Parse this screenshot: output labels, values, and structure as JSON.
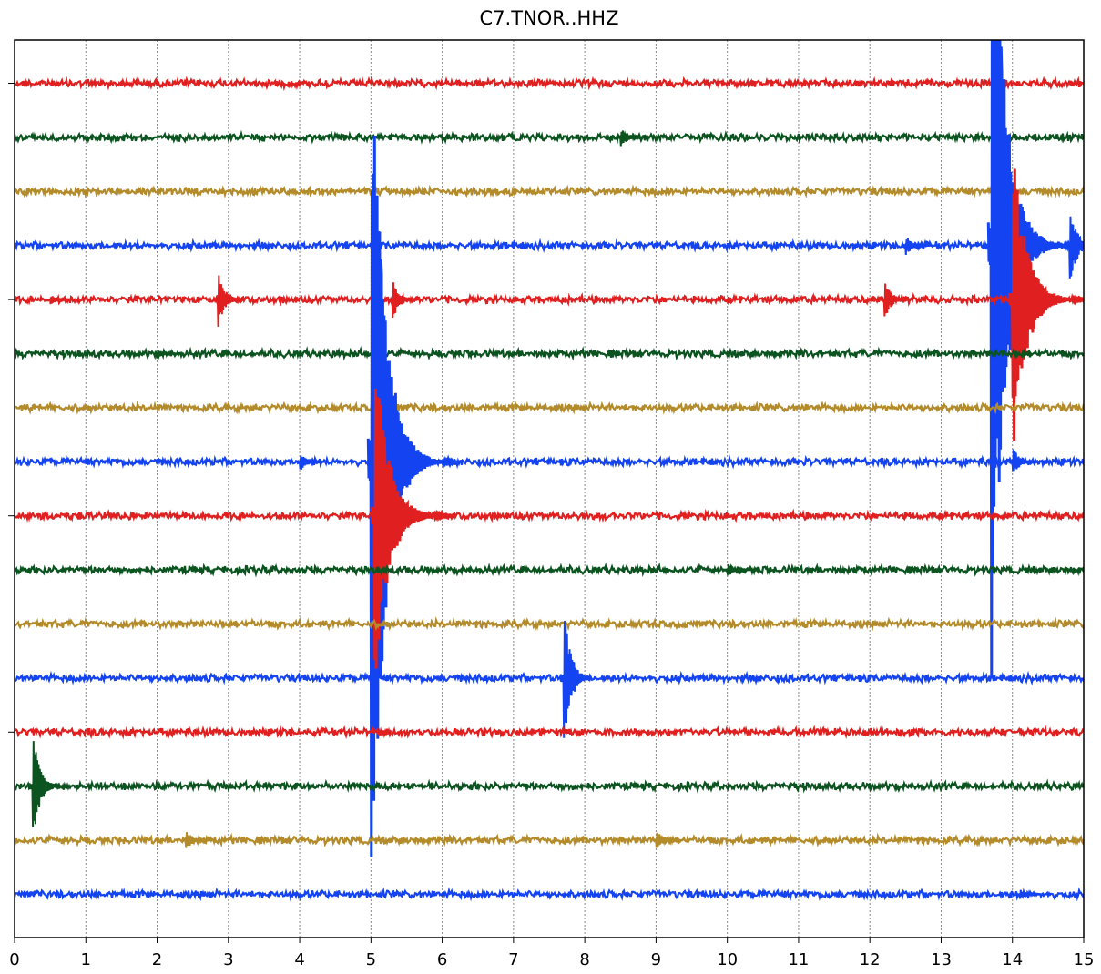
{
  "chart_data": {
    "type": "helicorder",
    "title": "C7.TNOR..HHZ",
    "xlim": [
      0,
      15
    ],
    "xticks": [
      0,
      1,
      2,
      3,
      4,
      5,
      6,
      7,
      8,
      9,
      10,
      11,
      12,
      13,
      14,
      15
    ],
    "ylim": [
      -0.8,
      15.8
    ],
    "yticks": [
      0,
      4,
      8,
      12
    ],
    "grid": true,
    "series": [
      {
        "color": "#e02020",
        "x": [],
        "values": []
      },
      {
        "color": "#0b531f",
        "x": [
          8.5
        ],
        "values": [
          0.2
        ]
      },
      {
        "color": "#b38b2a",
        "x": [],
        "values": []
      },
      {
        "color": "#1444f2",
        "x": [
          12.5,
          13.7,
          14.1,
          14.8
        ],
        "values": [
          0.2,
          9,
          0.2,
          0.9
        ]
      },
      {
        "color": "#e02020",
        "x": [
          0.5,
          2.85,
          5.3,
          12.2,
          14.0
        ],
        "values": [
          0.1,
          0.55,
          0.4,
          0.4,
          3
        ]
      },
      {
        "color": "#0b531f",
        "x": [
          2.0
        ],
        "values": [
          0.1
        ]
      },
      {
        "color": "#b38b2a",
        "x": [],
        "values": []
      },
      {
        "color": "#1444f2",
        "x": [
          4.0,
          5.0,
          14.0
        ],
        "values": [
          0.2,
          9,
          0.3
        ]
      },
      {
        "color": "#e02020",
        "x": [
          5.05
        ],
        "values": [
          3.5
        ]
      },
      {
        "color": "#0b531f",
        "x": [
          10.0
        ],
        "values": [
          0.15
        ]
      },
      {
        "color": "#b38b2a",
        "x": [],
        "values": []
      },
      {
        "color": "#1444f2",
        "x": [
          7.7
        ],
        "values": [
          1.5
        ]
      },
      {
        "color": "#e02020",
        "x": [],
        "values": []
      },
      {
        "color": "#0b531f",
        "x": [
          0.25
        ],
        "values": [
          1.2
        ]
      },
      {
        "color": "#b38b2a",
        "x": [
          2.4,
          9.0
        ],
        "values": [
          0.2,
          0.2
        ]
      },
      {
        "color": "#1444f2",
        "x": [
          14.1
        ],
        "values": [
          0.1
        ]
      }
    ]
  }
}
